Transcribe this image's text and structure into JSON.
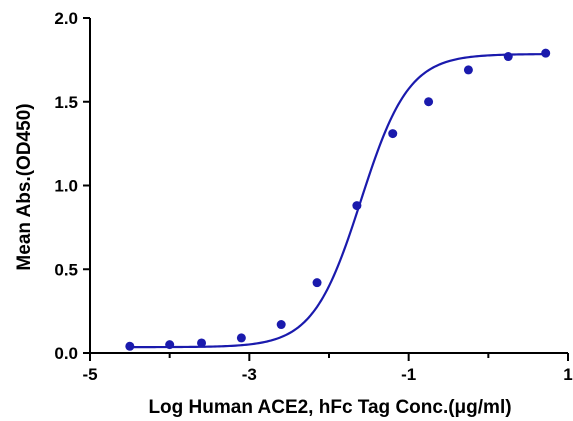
{
  "chart_data": {
    "type": "scatter",
    "xlabel": "Log Human ACE2, hFc Tag Conc.(μg/ml)",
    "ylabel": "Mean Abs.(OD450)",
    "xlim": [
      -5,
      1
    ],
    "ylim": [
      0,
      2.0
    ],
    "x_ticks": [
      "-5",
      "-3",
      "-1",
      "1"
    ],
    "y_ticks": [
      "0.0",
      "0.5",
      "1.0",
      "1.5",
      "2.0"
    ],
    "x_tick_values": [
      -5,
      -3,
      -1,
      1
    ],
    "y_tick_values": [
      0,
      0.5,
      1.0,
      1.5,
      2.0
    ],
    "grid": false,
    "series": [
      {
        "color": "#1a1aad",
        "points": [
          {
            "x": -4.5,
            "y": 0.04
          },
          {
            "x": -4.0,
            "y": 0.05
          },
          {
            "x": -3.6,
            "y": 0.06
          },
          {
            "x": -3.1,
            "y": 0.09
          },
          {
            "x": -2.6,
            "y": 0.17
          },
          {
            "x": -2.15,
            "y": 0.42
          },
          {
            "x": -1.65,
            "y": 0.88
          },
          {
            "x": -1.2,
            "y": 1.31
          },
          {
            "x": -0.75,
            "y": 1.5
          },
          {
            "x": -0.25,
            "y": 1.69
          },
          {
            "x": 0.25,
            "y": 1.77
          },
          {
            "x": 0.72,
            "y": 1.79
          }
        ],
        "fit": {
          "bottom": 0.035,
          "top": 1.785,
          "log_ec50": -1.6,
          "hill": 1.45,
          "x_range": [
            -4.5,
            0.72
          ]
        }
      }
    ]
  }
}
